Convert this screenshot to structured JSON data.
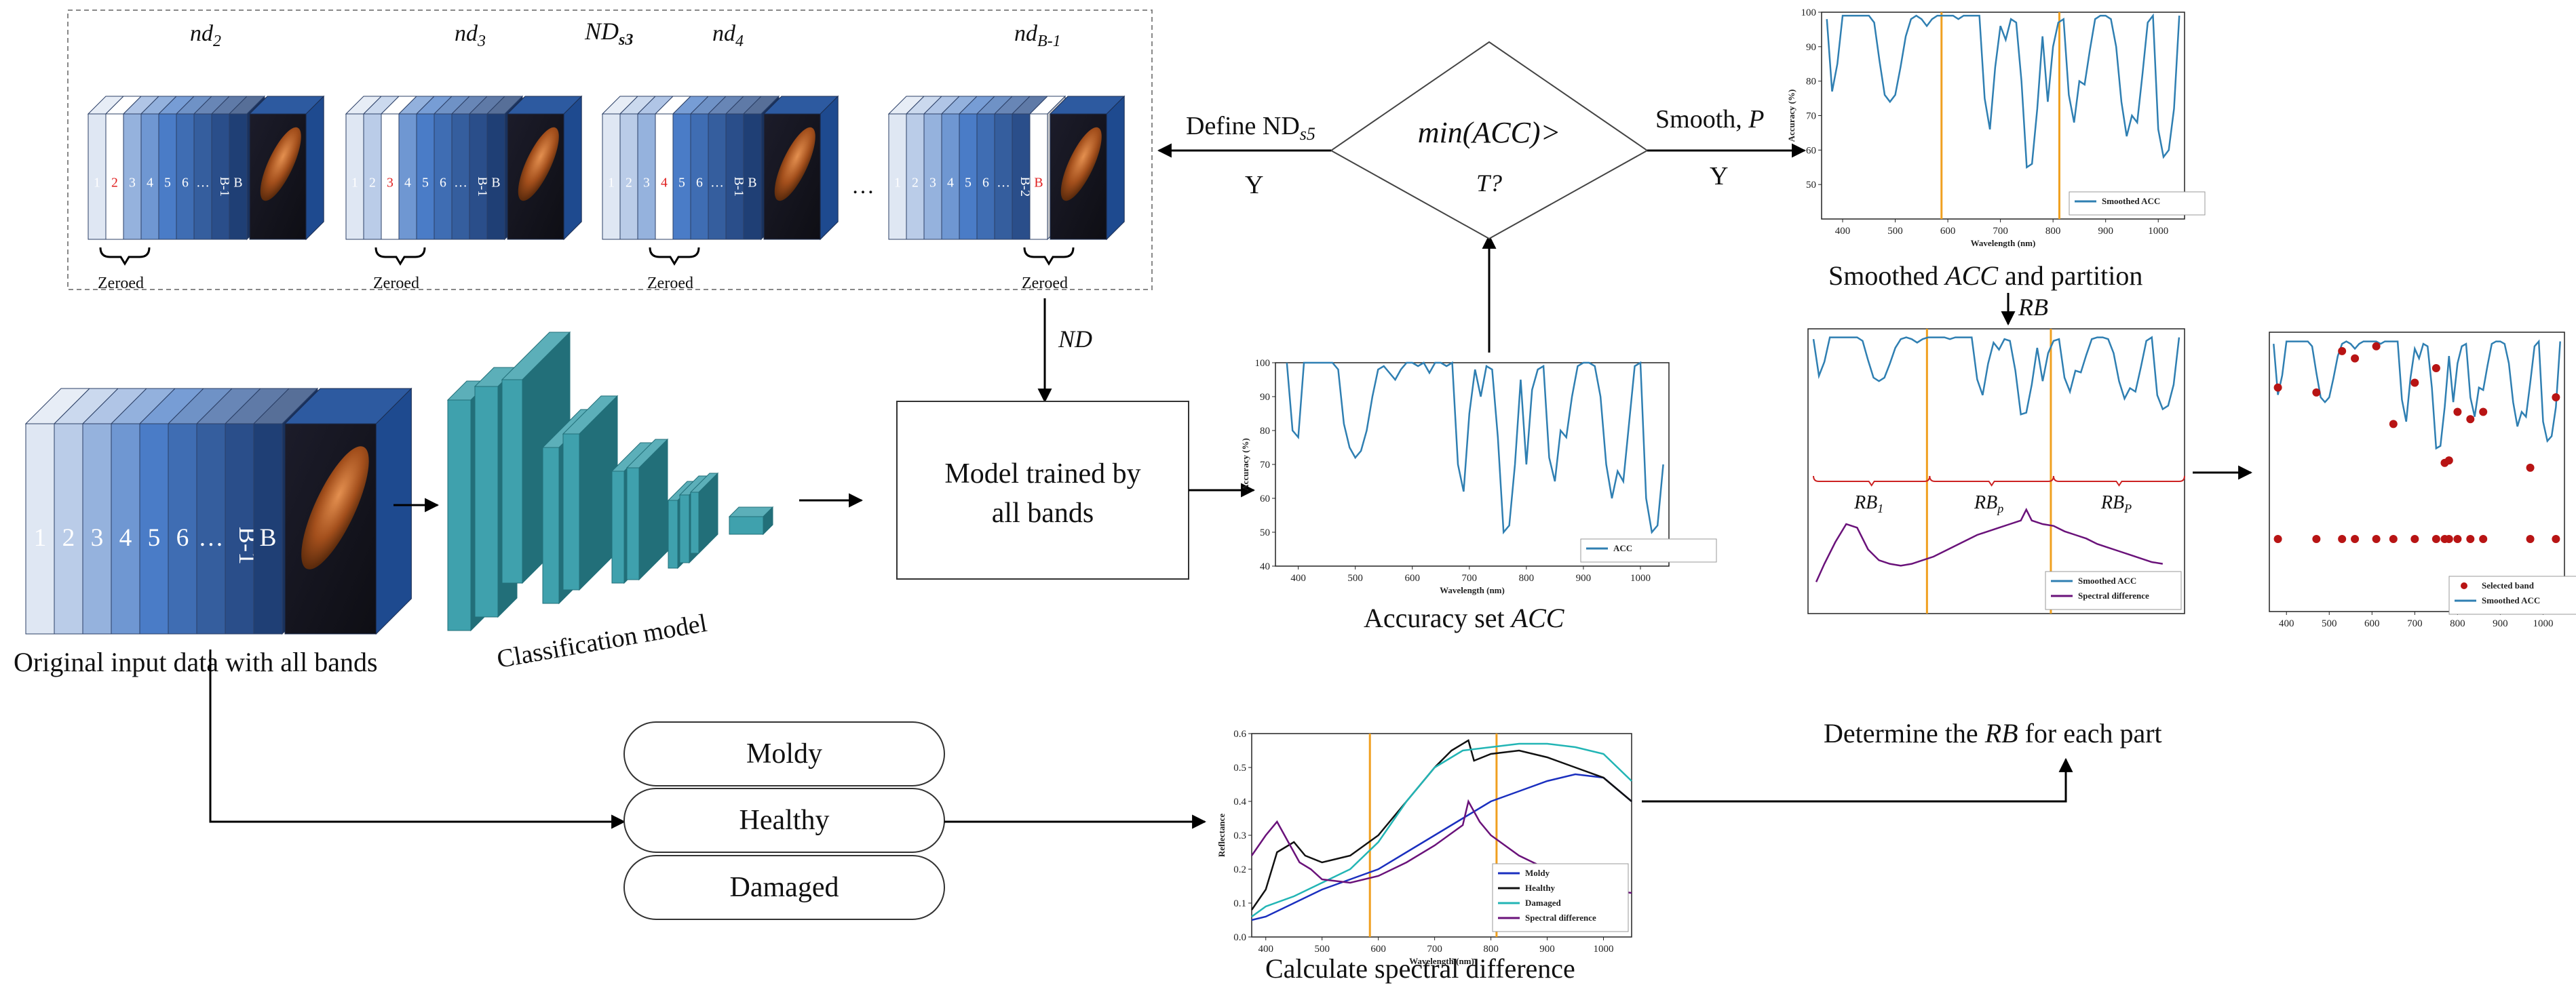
{
  "colors": {
    "band_light": "#dfe7f3",
    "band_mid": "#4a7cc7",
    "band_dark": "#1f3f75",
    "model_teal": "#3fa1ad",
    "model_teal_dark": "#226f79",
    "acc_line": "#2f7fb2",
    "partition_line": "#f0a020",
    "moldy": "#1a2fbf",
    "healthy": "#111111",
    "damaged": "#22b5b5",
    "spectral": "#6a127a",
    "selected": "#b81414",
    "zero_red": "#e02020"
  },
  "top_panel": {
    "title": "ND",
    "title_sub": "s3",
    "groups": [
      {
        "name": "nd",
        "sub": "2",
        "labels": [
          "1",
          "2",
          "3",
          "4",
          "5",
          "6",
          "…",
          "B-1",
          "B"
        ],
        "zero_index": 1,
        "zero_label": "Zeroed"
      },
      {
        "name": "nd",
        "sub": "3",
        "labels": [
          "1",
          "2",
          "3",
          "4",
          "5",
          "6",
          "…",
          "B-1",
          "B"
        ],
        "zero_index": 2,
        "zero_label": "Zeroed"
      },
      {
        "name": "nd",
        "sub": "4",
        "labels": [
          "1",
          "2",
          "3",
          "4",
          "5",
          "6",
          "…",
          "B-1",
          "B"
        ],
        "zero_index": 3,
        "zero_label": "Zeroed"
      },
      {
        "name": "nd",
        "sub": "B-1",
        "labels": [
          "1",
          "2",
          "3",
          "4",
          "5",
          "6",
          "…",
          "B-2",
          "B"
        ],
        "zero_index": 8,
        "zero_label": "Zeroed"
      }
    ],
    "ellipsis": "…"
  },
  "input_stack": {
    "labels": [
      "1",
      "2",
      "3",
      "4",
      "5",
      "6",
      "…",
      "B-1",
      "B"
    ],
    "caption": "Original input data with all bands"
  },
  "model": {
    "caption": "Classification model"
  },
  "arrow_nd": "ND",
  "trained_box": {
    "line1": "Model trained by",
    "line2": "all bands"
  },
  "decision": {
    "text": "min(ACC)>",
    "text2": "T?"
  },
  "define": {
    "text": "Define ND",
    "sub": "s5",
    "yes": "Y"
  },
  "smooth": {
    "text": "Smooth, ",
    "param": "P",
    "yes": "Y"
  },
  "rb_arrow": "RB",
  "classes": [
    "Moldy",
    "Healthy",
    "Damaged"
  ],
  "captions": {
    "accuracy": "Accuracy set ",
    "accuracy_it": "ACC",
    "smoothed": "Smoothed ",
    "smoothed_it": "ACC",
    "smoothed_tail": " and partition",
    "determine": "Determine the ",
    "determine_it": "RB",
    "determine_tail": " for each part",
    "spectral": "Calculate spectral difference"
  },
  "chart_data": [
    {
      "type": "line",
      "name_key": "accuracy-chart",
      "xlabel": "Wavelength (nm)",
      "ylabel": "Accuracy (%)",
      "xlim": [
        360,
        1050
      ],
      "ylim": [
        40,
        100
      ],
      "xticks": [
        400,
        500,
        600,
        700,
        800,
        900,
        1000
      ],
      "yticks": [
        40,
        50,
        60,
        70,
        80,
        90,
        100
      ],
      "legend": "bottom-right",
      "series": [
        {
          "name": "ACC",
          "x": [
            380,
            390,
            400,
            410,
            420,
            430,
            440,
            450,
            460,
            470,
            480,
            490,
            500,
            510,
            520,
            530,
            540,
            550,
            560,
            570,
            580,
            590,
            600,
            610,
            620,
            630,
            640,
            650,
            660,
            670,
            680,
            690,
            700,
            710,
            720,
            730,
            740,
            750,
            760,
            770,
            780,
            790,
            800,
            810,
            820,
            830,
            840,
            850,
            860,
            870,
            880,
            890,
            900,
            910,
            920,
            930,
            940,
            950,
            960,
            970,
            980,
            990,
            1000,
            1010,
            1020,
            1030,
            1040
          ],
          "values": [
            100,
            80,
            78,
            100,
            100,
            100,
            100,
            100,
            100,
            98,
            82,
            75,
            72,
            74,
            80,
            90,
            98,
            99,
            97,
            95,
            98,
            100,
            100,
            99,
            100,
            97,
            100,
            100,
            99,
            100,
            70,
            62,
            85,
            98,
            90,
            99,
            98,
            78,
            50,
            52,
            70,
            95,
            70,
            92,
            98,
            99,
            72,
            65,
            80,
            78,
            90,
            99,
            100,
            100,
            99,
            90,
            70,
            60,
            68,
            65,
            82,
            99,
            100,
            60,
            50,
            52,
            70
          ]
        }
      ]
    },
    {
      "type": "line",
      "name_key": "smoothed-chart",
      "xlabel": "Wavelength (nm)",
      "ylabel": "Accuracy (%)",
      "xlim": [
        360,
        1050
      ],
      "ylim": [
        40,
        100
      ],
      "xticks": [
        400,
        500,
        600,
        700,
        800,
        900,
        1000
      ],
      "yticks": [
        50,
        60,
        70,
        80,
        90,
        100
      ],
      "partitions": [
        588,
        812
      ],
      "legend": "bottom-right",
      "series": [
        {
          "name": "Smoothed ACC",
          "x": [
            370,
            380,
            390,
            400,
            410,
            420,
            430,
            440,
            450,
            460,
            470,
            480,
            490,
            500,
            510,
            520,
            530,
            540,
            550,
            560,
            570,
            580,
            590,
            600,
            610,
            620,
            630,
            640,
            650,
            660,
            670,
            680,
            690,
            700,
            710,
            720,
            730,
            740,
            750,
            760,
            770,
            780,
            790,
            800,
            810,
            820,
            830,
            840,
            850,
            860,
            870,
            880,
            890,
            900,
            910,
            920,
            930,
            940,
            950,
            960,
            970,
            980,
            990,
            1000,
            1010,
            1020,
            1030,
            1040
          ],
          "values": [
            98,
            77,
            85,
            99,
            99,
            99,
            99,
            99,
            99,
            97,
            86,
            76,
            74,
            76,
            84,
            93,
            98,
            99,
            98,
            96,
            98,
            99,
            99,
            99,
            99,
            98,
            99,
            99,
            99,
            99,
            75,
            66,
            84,
            96,
            92,
            98,
            97,
            80,
            55,
            56,
            72,
            93,
            74,
            90,
            97,
            98,
            76,
            68,
            80,
            79,
            89,
            98,
            99,
            99,
            98,
            90,
            74,
            64,
            70,
            68,
            82,
            97,
            99,
            66,
            58,
            60,
            72,
            99
          ]
        }
      ]
    },
    {
      "type": "line",
      "name_key": "partition-chart",
      "xlim": [
        360,
        1050
      ],
      "ylim": [
        0,
        100
      ],
      "partitions": [
        578,
        805
      ],
      "partition_labels": [
        "RB",
        "RB",
        "RB"
      ],
      "partition_label_subs": [
        "1",
        "p",
        "P"
      ],
      "legend": "bottom-right",
      "series": [
        {
          "name": "Smoothed ACC",
          "x": [
            370,
            380,
            390,
            400,
            410,
            420,
            430,
            440,
            450,
            460,
            470,
            480,
            490,
            500,
            510,
            520,
            530,
            540,
            550,
            560,
            570,
            580,
            590,
            600,
            610,
            620,
            630,
            640,
            650,
            660,
            670,
            680,
            690,
            700,
            710,
            720,
            730,
            740,
            750,
            760,
            770,
            780,
            790,
            800,
            810,
            820,
            830,
            840,
            850,
            860,
            870,
            880,
            890,
            900,
            910,
            920,
            930,
            940,
            950,
            960,
            970,
            980,
            990,
            1000,
            1010,
            1020,
            1030,
            1040
          ],
          "values": [
            98,
            77,
            85,
            99,
            99,
            99,
            99,
            99,
            99,
            97,
            86,
            76,
            74,
            76,
            84,
            93,
            98,
            99,
            98,
            96,
            98,
            99,
            99,
            99,
            99,
            98,
            99,
            99,
            99,
            99,
            75,
            66,
            84,
            96,
            92,
            98,
            97,
            80,
            55,
            56,
            72,
            93,
            74,
            90,
            97,
            98,
            76,
            68,
            80,
            79,
            89,
            98,
            99,
            99,
            98,
            90,
            74,
            64,
            70,
            68,
            82,
            97,
            99,
            66,
            58,
            60,
            72,
            99
          ]
        },
        {
          "name": "Spectral difference",
          "x": [
            375,
            390,
            410,
            430,
            450,
            470,
            490,
            510,
            530,
            550,
            570,
            590,
            610,
            630,
            650,
            670,
            690,
            710,
            730,
            750,
            760,
            770,
            790,
            810,
            830,
            850,
            870,
            890,
            910,
            930,
            950,
            970,
            990,
            1010
          ],
          "values": [
            10,
            20,
            32,
            42,
            40,
            28,
            22,
            20,
            19,
            20,
            22,
            24,
            27,
            30,
            33,
            36,
            38,
            40,
            42,
            44,
            50,
            44,
            42,
            41,
            38,
            36,
            34,
            31,
            29,
            27,
            25,
            23,
            21,
            20
          ]
        }
      ]
    },
    {
      "type": "scatter",
      "name_key": "selected-chart",
      "xlim": [
        360,
        1050
      ],
      "ylim": [
        0,
        100
      ],
      "xticks": [
        400,
        500,
        600,
        700,
        800,
        900,
        1000
      ],
      "legend": "bottom-right",
      "series": [
        {
          "name": "Selected band",
          "x": [
            380,
            470,
            530,
            560,
            610,
            650,
            700,
            750,
            770,
            780,
            800,
            830,
            860,
            970,
            1030
          ],
          "values": [
            80,
            78,
            95,
            92,
            97,
            65,
            82,
            88,
            49,
            50,
            70,
            67,
            70,
            47,
            76
          ]
        },
        {
          "name": "Smoothed ACC",
          "x": [
            370,
            380,
            390,
            400,
            410,
            420,
            430,
            440,
            450,
            460,
            470,
            480,
            490,
            500,
            510,
            520,
            530,
            540,
            550,
            560,
            570,
            580,
            590,
            600,
            610,
            620,
            630,
            640,
            650,
            660,
            670,
            680,
            690,
            700,
            710,
            720,
            730,
            740,
            750,
            760,
            770,
            780,
            790,
            800,
            810,
            820,
            830,
            840,
            850,
            860,
            870,
            880,
            890,
            900,
            910,
            920,
            930,
            940,
            950,
            960,
            970,
            980,
            990,
            1000,
            1010,
            1020,
            1030,
            1040
          ],
          "values": [
            98,
            77,
            85,
            99,
            99,
            99,
            99,
            99,
            99,
            97,
            86,
            76,
            74,
            76,
            84,
            93,
            98,
            99,
            98,
            96,
            98,
            99,
            99,
            99,
            99,
            98,
            99,
            99,
            99,
            99,
            75,
            66,
            84,
            96,
            92,
            98,
            97,
            80,
            55,
            56,
            72,
            93,
            74,
            90,
            97,
            98,
            76,
            68,
            80,
            79,
            89,
            98,
            99,
            99,
            98,
            90,
            74,
            64,
            70,
            68,
            82,
            97,
            99,
            66,
            58,
            60,
            72,
            99
          ]
        }
      ]
    },
    {
      "type": "line",
      "name_key": "reflectance-chart",
      "xlabel": "Wavelength (nm)",
      "ylabel": "Reflectance",
      "xlim": [
        375,
        1050
      ],
      "ylim": [
        0,
        0.6
      ],
      "xticks": [
        400,
        500,
        600,
        700,
        800,
        900,
        1000
      ],
      "yticks": [
        0.0,
        0.1,
        0.2,
        0.3,
        0.4,
        0.5,
        0.6
      ],
      "partitions": [
        585,
        810
      ],
      "legend": "bottom-right",
      "series": [
        {
          "name": "Moldy",
          "x": [
            375,
            400,
            450,
            500,
            550,
            600,
            650,
            700,
            750,
            800,
            850,
            900,
            950,
            1000,
            1050
          ],
          "values": [
            0.05,
            0.06,
            0.1,
            0.14,
            0.17,
            0.2,
            0.25,
            0.3,
            0.35,
            0.4,
            0.43,
            0.46,
            0.48,
            0.47,
            0.4
          ]
        },
        {
          "name": "Healthy",
          "x": [
            375,
            400,
            420,
            450,
            470,
            500,
            550,
            600,
            650,
            700,
            730,
            760,
            770,
            800,
            850,
            900,
            950,
            1000,
            1050
          ],
          "values": [
            0.08,
            0.14,
            0.25,
            0.28,
            0.24,
            0.22,
            0.24,
            0.3,
            0.4,
            0.5,
            0.55,
            0.58,
            0.52,
            0.54,
            0.55,
            0.53,
            0.5,
            0.47,
            0.4
          ]
        },
        {
          "name": "Damaged",
          "x": [
            375,
            400,
            450,
            500,
            550,
            600,
            650,
            700,
            750,
            800,
            850,
            900,
            950,
            1000,
            1050
          ],
          "values": [
            0.06,
            0.09,
            0.12,
            0.16,
            0.2,
            0.28,
            0.4,
            0.5,
            0.55,
            0.56,
            0.57,
            0.57,
            0.56,
            0.54,
            0.46
          ]
        },
        {
          "name": "Spectral difference",
          "x": [
            375,
            400,
            420,
            440,
            460,
            480,
            500,
            550,
            600,
            650,
            700,
            750,
            760,
            780,
            800,
            850,
            900,
            950,
            1000,
            1050
          ],
          "values": [
            0.24,
            0.3,
            0.34,
            0.28,
            0.22,
            0.2,
            0.17,
            0.16,
            0.18,
            0.22,
            0.27,
            0.33,
            0.4,
            0.34,
            0.3,
            0.24,
            0.2,
            0.16,
            0.14,
            0.13
          ]
        }
      ]
    }
  ]
}
